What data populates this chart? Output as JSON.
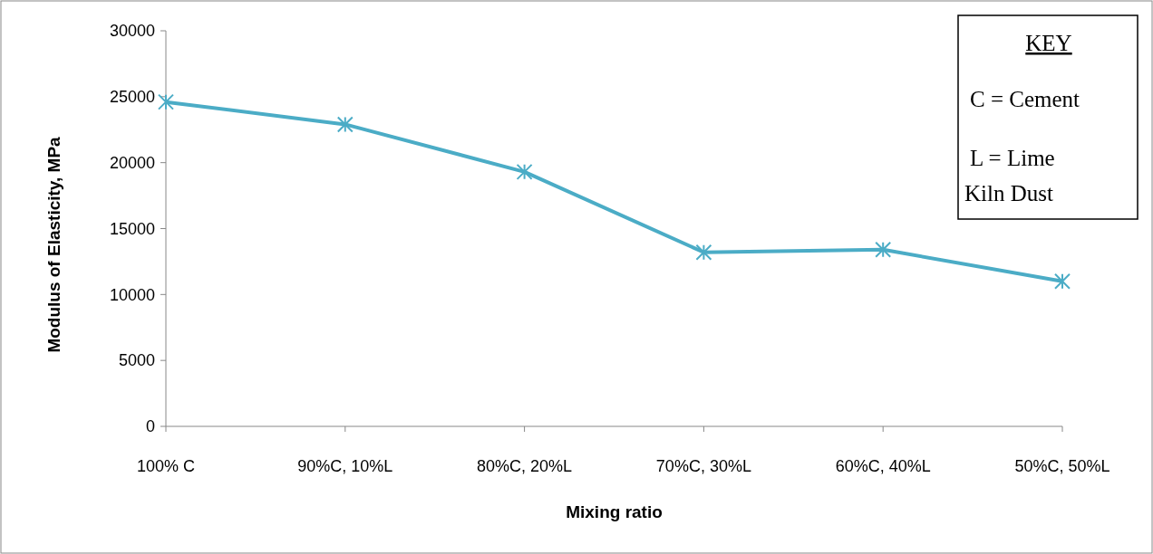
{
  "chart_data": {
    "type": "line",
    "xlabel": "Mixing ratio",
    "ylabel": "Modulus of Elasticity, MPa",
    "categories": [
      "100% C",
      "90%C, 10%L",
      "80%C, 20%L",
      "70%C, 30%L",
      "60%C, 40%L",
      "50%C, 50%L"
    ],
    "series": [
      {
        "color": "#4bacc6",
        "values": [
          24600,
          22900,
          19300,
          13200,
          13400,
          11000
        ]
      }
    ],
    "ylim": [
      0,
      30000
    ],
    "yticks": [
      0,
      5000,
      10000,
      15000,
      20000,
      25000,
      30000
    ],
    "grid": false,
    "marker": "cross",
    "line_style": "solid",
    "annotations": [
      "KEY",
      "C = Cement",
      "L = Lime Kiln Dust"
    ]
  }
}
